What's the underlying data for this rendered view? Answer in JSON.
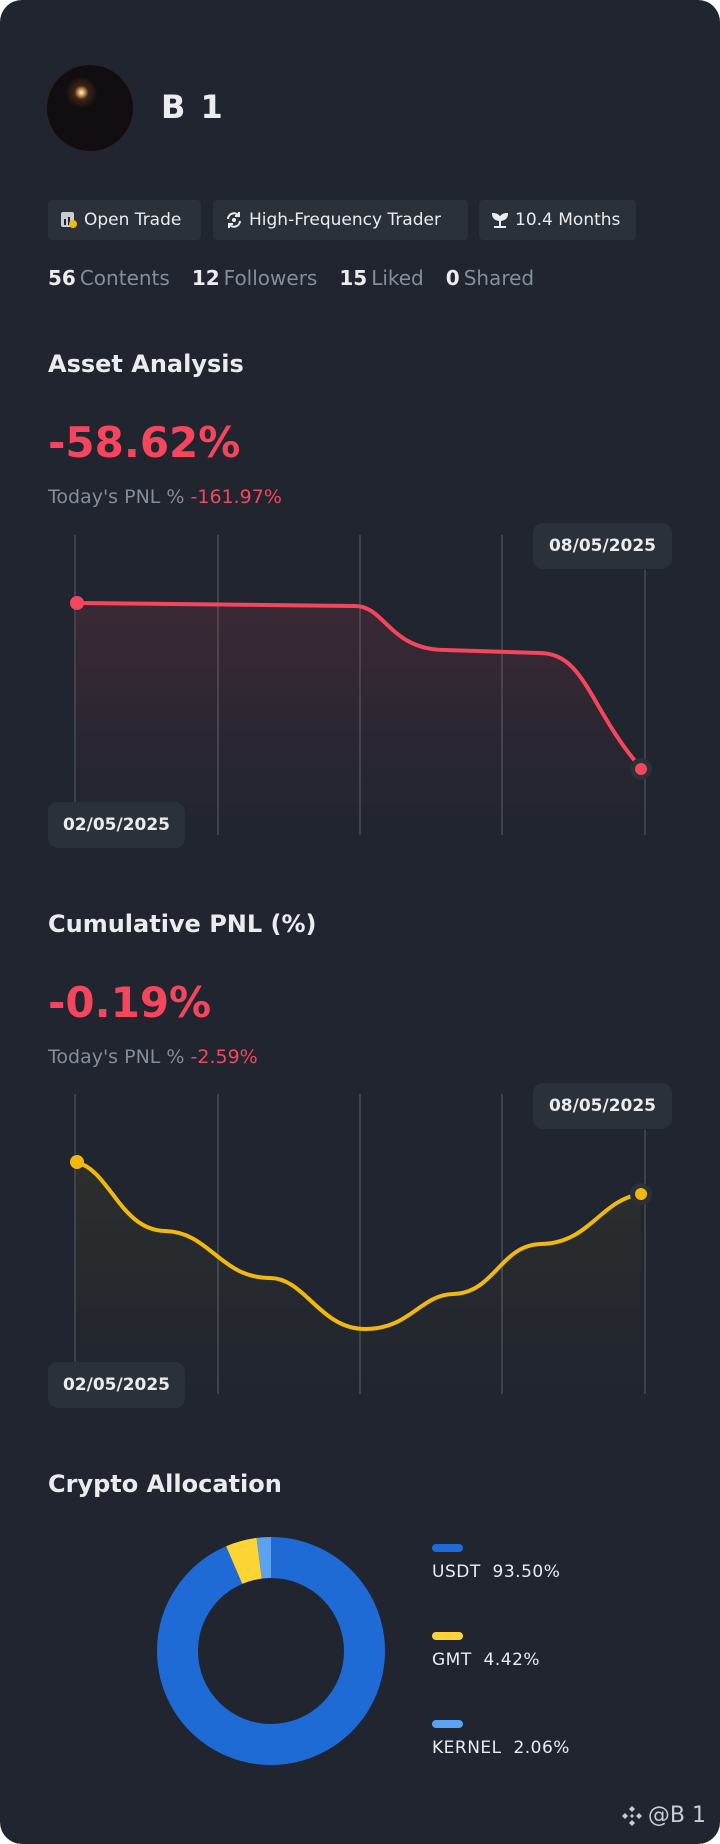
{
  "profile": {
    "name": "B 1"
  },
  "tags": [
    {
      "icon": "open-trade-icon",
      "label": "Open Trade"
    },
    {
      "icon": "refresh-icon",
      "label": "High-Frequency Trader"
    },
    {
      "icon": "sprout-icon",
      "label": "10.4 Months"
    }
  ],
  "stats": [
    {
      "count": "56",
      "label": "Contents"
    },
    {
      "count": "12",
      "label": "Followers"
    },
    {
      "count": "15",
      "label": "Liked"
    },
    {
      "count": "0",
      "label": "Shared"
    }
  ],
  "asset_analysis": {
    "title": "Asset Analysis",
    "value": "-58.62%",
    "today_label": "Today's PNL %",
    "today_value": "-161.97%",
    "start_date": "02/05/2025",
    "end_date": "08/05/2025",
    "line_color": "#f6465d"
  },
  "cumulative_pnl": {
    "title": "Cumulative PNL (%)",
    "value": "-0.19%",
    "today_label": "Today's PNL %",
    "today_value": "-2.59%",
    "start_date": "02/05/2025",
    "end_date": "08/05/2025",
    "line_color": "#f0b90b"
  },
  "crypto_allocation": {
    "title": "Crypto Allocation",
    "items": [
      {
        "asset": "USDT",
        "percent": "93.50%",
        "value": 93.5,
        "color": "#1e6bd6"
      },
      {
        "asset": "GMT",
        "percent": "4.42%",
        "value": 4.42,
        "color": "#fcd535"
      },
      {
        "asset": "KERNEL",
        "percent": "2.06%",
        "value": 2.06,
        "color": "#5ba3f0"
      }
    ]
  },
  "footer": {
    "handle": "@B 1"
  }
}
